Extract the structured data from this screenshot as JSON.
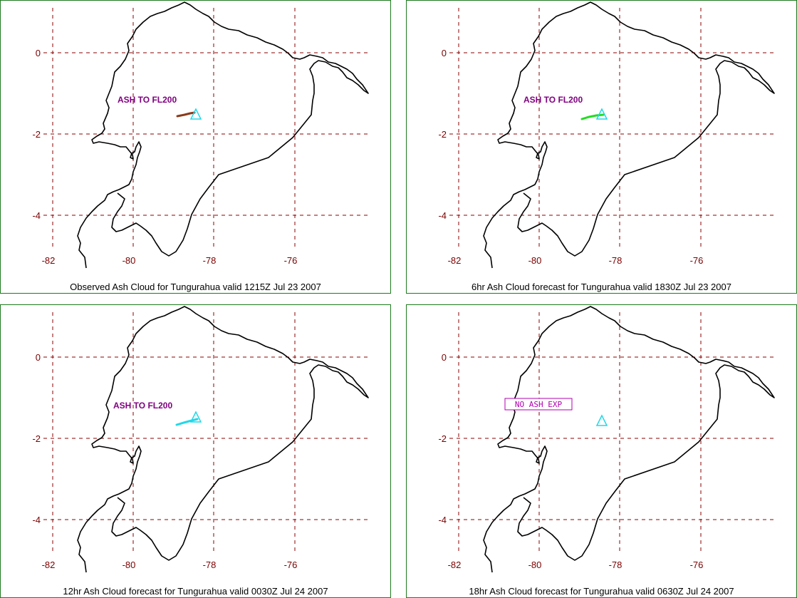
{
  "panels": [
    {
      "caption": "Observed Ash Cloud for Tungurahua valid 1215Z Jul 23 2007",
      "label": "ASH TO FL200",
      "label_style": "bold",
      "cloud_color": "#8b3a1a"
    },
    {
      "caption": "6hr Ash Cloud forecast for Tungurahua valid 1830Z Jul 23 2007",
      "label": "ASH TO FL200",
      "label_style": "bold",
      "cloud_color": "#22dd22"
    },
    {
      "caption": "12hr Ash Cloud forecast for Tungurahua valid 0030Z Jul 24 2007",
      "label": "ASH TO FL200",
      "label_style": "bold",
      "cloud_color": "#22d8e8"
    },
    {
      "caption": "18hr Ash Cloud forecast for Tungurahua valid 0630Z Jul 24 2007",
      "label": "NO ASH EXP",
      "label_style": "boxed",
      "cloud_color": null
    }
  ],
  "lat_ticks": [
    "0",
    "-2",
    "-4"
  ],
  "lon_ticks": [
    "-82",
    "-80",
    "-78",
    "-76"
  ],
  "colors": {
    "border": "#1f7a1f",
    "grid": "#8b0000",
    "coast": "#000000",
    "volcano": "#22d8e8",
    "tick_text": "#7a0000"
  },
  "icons": {
    "volcano": "volcano-triangle-icon"
  }
}
